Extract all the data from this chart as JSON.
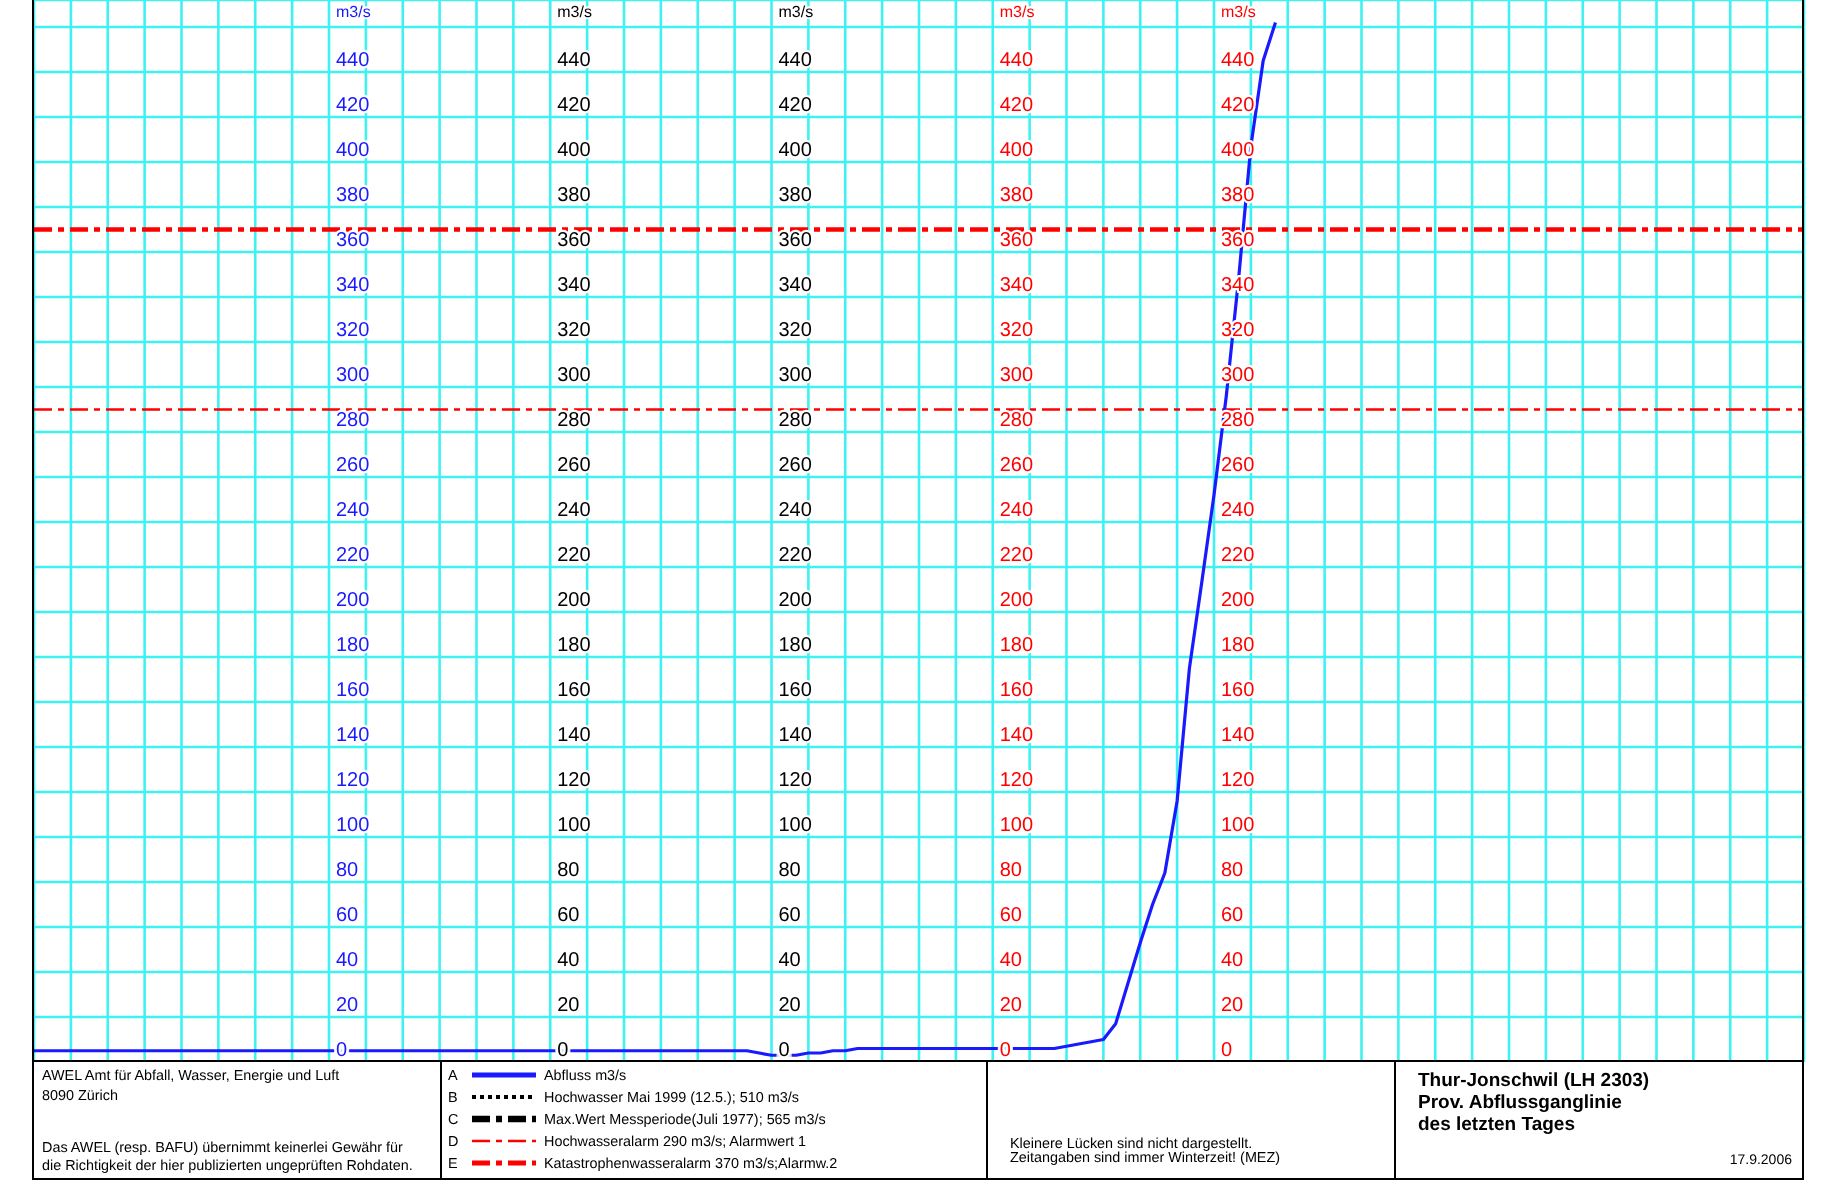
{
  "chart_data": {
    "type": "line",
    "title": "Thur-Jonschwil (LH 2303)",
    "subtitle": "Prov. Abflussganglinie des letzten Tages",
    "ylabel": "m3/s",
    "y2label": "m3/s",
    "y3label": "m3/s",
    "annotations": [
      "AWEL Amt für Abfall, Wasser, Energie und Luft",
      "8090 Zürich",
      "Das AWEL (resp. BAFU) übernimmt keinerlei Gewähr für",
      "die Richtigkeit der hier publizierten ungeprüften Rohdaten.",
      "Kleinere Lücken sind nicht dargestellt.",
      "Zeitangaben sind immer Winterzeit! (MEZ)",
      "17.9.2006",
      "A",
      "B",
      "C",
      "D",
      "E",
      "440",
      "420",
      "400",
      "380",
      "360",
      "340",
      "320",
      "300",
      "280",
      "260",
      "240",
      "220",
      "200",
      "180",
      "160",
      "140",
      "120",
      "100",
      "80",
      "60",
      "40",
      "20",
      "0",
      "440",
      "420",
      "400",
      "380",
      "360",
      "340",
      "320",
      "300",
      "280",
      "260",
      "240",
      "220",
      "200",
      "180",
      "160",
      "140",
      "120",
      "100",
      "80",
      "60",
      "40",
      "20",
      "0"
    ],
    "categories": [
      null,
      null,
      null,
      null,
      null,
      null,
      null,
      null,
      null,
      null,
      null,
      null,
      null,
      null,
      null,
      null,
      null,
      null,
      null,
      null,
      null,
      null,
      null,
      null,
      null,
      null,
      null,
      null,
      null,
      null,
      null,
      null,
      null,
      null,
      null,
      null,
      null,
      null,
      null,
      null,
      null,
      null,
      null,
      null,
      null,
      null,
      null,
      null,
      null,
      null,
      null,
      null,
      null,
      null,
      null,
      null,
      null,
      null,
      null,
      null,
      null,
      null,
      null,
      null,
      null,
      null,
      null,
      null,
      null,
      null,
      null,
      null,
      null,
      null,
      null,
      null,
      null,
      null,
      null,
      null,
      null,
      null,
      null,
      null,
      null,
      null,
      null,
      null,
      null,
      null,
      null,
      null,
      null,
      null,
      null,
      null,
      null,
      null,
      null,
      null,
      null,
      null,
      null,
      null,
      null,
      null,
      null,
      null,
      null,
      null,
      null,
      null,
      null,
      null,
      null,
      null,
      null,
      null,
      null,
      null,
      null,
      null,
      null,
      null,
      null,
      null,
      null,
      null,
      null,
      null,
      null,
      null,
      null,
      null,
      null,
      null,
      null,
      null,
      null,
      null,
      null,
      null,
      null,
      null,
      null
    ],
    "series": [
      {
        "name": "Abfluss m3/s",
        "color": "#1a1aff",
        "values": [
          5,
          5,
          5,
          5,
          5,
          5,
          5,
          5,
          5,
          5,
          5,
          5,
          5,
          5,
          5,
          5,
          5,
          5,
          5,
          5,
          5,
          5,
          5,
          5,
          5,
          5,
          5,
          5,
          5,
          5,
          5,
          5,
          5,
          5,
          5,
          5,
          5,
          5,
          5,
          5,
          5,
          5,
          5,
          5,
          5,
          5,
          5,
          5,
          5,
          5,
          5,
          5,
          5,
          5,
          5,
          5,
          5,
          5,
          5,
          4,
          3,
          3,
          3,
          4,
          4,
          5,
          5,
          6,
          6,
          6,
          6,
          6,
          6,
          6,
          6,
          6,
          6,
          6,
          6,
          6,
          6,
          6,
          6,
          6,
          7,
          8,
          9,
          10,
          17,
          35,
          53,
          70,
          84,
          116,
          175,
          213,
          252,
          296,
          348,
          407,
          445,
          462,
          null,
          null,
          null,
          null,
          null,
          null,
          null,
          null,
          null,
          null,
          null,
          null,
          null,
          null,
          null,
          null,
          null,
          null,
          null,
          null,
          null,
          null,
          null,
          null,
          null,
          null,
          null,
          null,
          null,
          null,
          null,
          null,
          null,
          null,
          null,
          null,
          null,
          null,
          null,
          null,
          null,
          null,
          null
        ]
      },
      {
        "name": "Hochwasser Mai 1999 (12.5.); 510 m3/s",
        "color": "#000000",
        "line_style": "dotted",
        "values": [
          null,
          null,
          null,
          null,
          null,
          null,
          null,
          null,
          null,
          null,
          null,
          null,
          null,
          null,
          null,
          null,
          null,
          null,
          null,
          null,
          null,
          null,
          null,
          null,
          null,
          null,
          null,
          null,
          null,
          null,
          null,
          null,
          null,
          null,
          null,
          null,
          null,
          null,
          null,
          null,
          null,
          null,
          null,
          null,
          null,
          null,
          null,
          null,
          null,
          null,
          null,
          null,
          null,
          null,
          null,
          null,
          null,
          null,
          null,
          null,
          null,
          null,
          null,
          null,
          null,
          null,
          null,
          null,
          null,
          null,
          null,
          null,
          null,
          null,
          null,
          null,
          null,
          null,
          null,
          null,
          null,
          null,
          null,
          null,
          null,
          null,
          null,
          null,
          null,
          null,
          null,
          null,
          null,
          null,
          null,
          null,
          null,
          null,
          null,
          null,
          null,
          null,
          null,
          null,
          null,
          null,
          null,
          null,
          null,
          null,
          null,
          null,
          null,
          null,
          null,
          null,
          null,
          null,
          null,
          null,
          null,
          null,
          null,
          null,
          null,
          null,
          null,
          null,
          null,
          null,
          null,
          null,
          null,
          null,
          null,
          null,
          null,
          null,
          null,
          null,
          null,
          null,
          null,
          null,
          null
        ]
      },
      {
        "name": "Max.Wert Messperiode(Juli 1977); 565 m3/s",
        "color": "#000000",
        "line_style": "dashed",
        "values": [
          null,
          null,
          null,
          null,
          null,
          null,
          null,
          null,
          null,
          null,
          null,
          null,
          null,
          null,
          null,
          null,
          null,
          null,
          null,
          null,
          null,
          null,
          null,
          null,
          null,
          null,
          null,
          null,
          null,
          null,
          null,
          null,
          null,
          null,
          null,
          null,
          null,
          null,
          null,
          null,
          null,
          null,
          null,
          null,
          null,
          null,
          null,
          null,
          null,
          null,
          null,
          null,
          null,
          null,
          null,
          null,
          null,
          null,
          null,
          null,
          null,
          null,
          null,
          null,
          null,
          null,
          null,
          null,
          null,
          null,
          null,
          null,
          null,
          null,
          null,
          null,
          null,
          null,
          null,
          null,
          null,
          null,
          null,
          null,
          null,
          null,
          null,
          null,
          null,
          null,
          null,
          null,
          null,
          null,
          null,
          null,
          null,
          null,
          null,
          null,
          null,
          null,
          null,
          null,
          null,
          null,
          null,
          null,
          null,
          null,
          null,
          null,
          null,
          null,
          null,
          null,
          null,
          null,
          null,
          null,
          null,
          null,
          null,
          null,
          null,
          null,
          null,
          null,
          null,
          null,
          null,
          null,
          null,
          null,
          null,
          null,
          null,
          null,
          null,
          null,
          null,
          null,
          null,
          null,
          null
        ]
      }
    ],
    "ref_lines": [
      {
        "axis": "y",
        "value": 290,
        "label": "Hochwasseralarm 290 m3/s; Alarmwert 1",
        "color": "#ff0000",
        "line_style": "dashed"
      },
      {
        "axis": "y",
        "value": 370,
        "label": "Katastrophenwasseralarm 370 m3/s;Alarmw.2",
        "color": "#ff0000",
        "line_style": "dashed"
      }
    ],
    "ylim": [
      0,
      472
    ],
    "yticks": [
      0,
      20,
      40,
      60,
      80,
      100,
      120,
      140,
      160,
      180,
      200,
      220,
      240,
      260,
      280,
      300,
      320,
      340,
      360,
      380,
      400,
      420,
      440,
      {
        "value": 460,
        "label": null
      }
    ],
    "y2lim": [
      0,
      472
    ],
    "y2ticks": [
      0,
      20,
      40,
      60,
      80,
      100,
      120,
      140,
      160,
      180,
      200,
      220,
      240,
      260,
      280,
      300,
      320,
      340,
      360,
      380,
      400,
      420,
      440
    ],
    "y3lim": [
      0,
      472
    ],
    "y3ticks": [
      0,
      20,
      40,
      60,
      80,
      100,
      120,
      140,
      160,
      180,
      200,
      220,
      240,
      260,
      280,
      300,
      320,
      340,
      360,
      380,
      400,
      420,
      440
    ],
    "grid": true,
    "legend": "bottom"
  }
}
